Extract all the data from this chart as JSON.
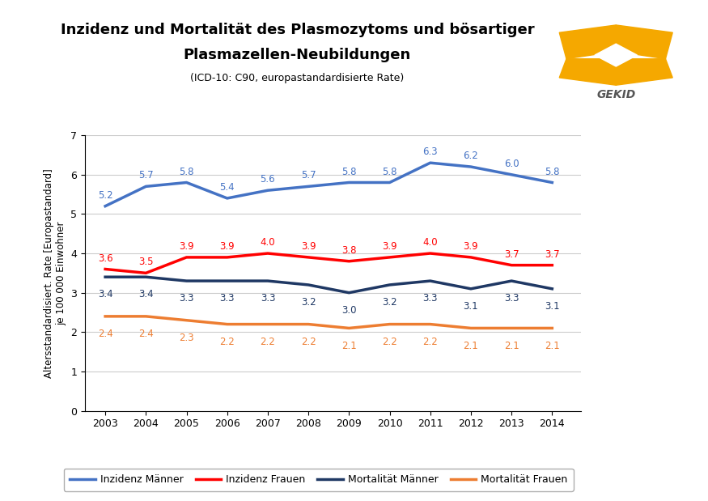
{
  "title_line1": "Inzidenz und Mortalität des Plasmozytoms und bösartiger",
  "title_line2": "Plasmazellen-Neubildungen",
  "subtitle": "(ICD-10: C90, europastandardisierte Rate)",
  "ylabel": "Altersstandardisiert. Rate [Europastandard]\nje 100 000 Einwohner",
  "years": [
    2003,
    2004,
    2005,
    2006,
    2007,
    2008,
    2009,
    2010,
    2011,
    2012,
    2013,
    2014
  ],
  "inzidenz_maenner": [
    5.2,
    5.7,
    5.8,
    5.4,
    5.6,
    5.7,
    5.8,
    5.8,
    6.3,
    6.2,
    6.0,
    5.8
  ],
  "inzidenz_frauen": [
    3.6,
    3.5,
    3.9,
    3.9,
    4.0,
    3.9,
    3.8,
    3.9,
    4.0,
    3.9,
    3.7,
    3.7
  ],
  "mortalitaet_maenner": [
    3.4,
    3.4,
    3.3,
    3.3,
    3.3,
    3.2,
    3.0,
    3.2,
    3.3,
    3.1,
    3.3,
    3.1
  ],
  "mortalitaet_frauen": [
    2.4,
    2.4,
    2.3,
    2.2,
    2.2,
    2.2,
    2.1,
    2.2,
    2.2,
    2.1,
    2.1,
    2.1
  ],
  "color_inzidenz_maenner": "#4472C4",
  "color_inzidenz_frauen": "#FF0000",
  "color_mortalitaet_maenner": "#1F3864",
  "color_mortalitaet_frauen": "#ED7D31",
  "ylim": [
    0,
    7
  ],
  "yticks": [
    0,
    1,
    2,
    3,
    4,
    5,
    6,
    7
  ],
  "legend_labels": [
    "Inzidenz Männer",
    "Inzidenz Frauen",
    "Mortalität Männer",
    "Mortalität Frauen"
  ],
  "background_color": "#FFFFFF",
  "grid_color": "#CCCCCC",
  "label_fontsize": 8.5,
  "title_fontsize": 13,
  "subtitle_fontsize": 9,
  "logo_color": "#F5A800"
}
